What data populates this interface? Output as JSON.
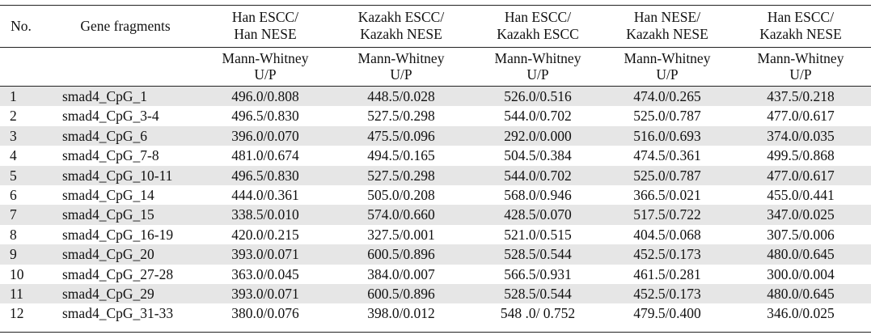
{
  "table": {
    "headers": {
      "no": "No.",
      "gene": "Gene fragments",
      "columns": [
        [
          "Han ESCC/",
          "Han NESE"
        ],
        [
          "Kazakh ESCC/",
          "Kazakh NESE"
        ],
        [
          "Han ESCC/",
          "Kazakh ESCC"
        ],
        [
          "Han NESE/",
          "Kazakh NESE"
        ],
        [
          "Han ESCC/",
          "Kazakh NESE"
        ]
      ],
      "subheader": [
        "Mann-Whitney",
        "U/P"
      ]
    },
    "rows": [
      {
        "no": "1",
        "gene": "smad4_CpG_1",
        "values": [
          "496.0/0.808",
          "448.5/0.028",
          "526.0/0.516",
          "474.0/0.265",
          "437.5/0.218"
        ]
      },
      {
        "no": "2",
        "gene": "smad4_CpG_3-4",
        "values": [
          "496.5/0.830",
          "527.5/0.298",
          "544.0/0.702",
          "525.0/0.787",
          "477.0/0.617"
        ]
      },
      {
        "no": "3",
        "gene": "smad4_CpG_6",
        "values": [
          "396.0/0.070",
          "475.5/0.096",
          "292.0/0.000",
          "516.0/0.693",
          "374.0/0.035"
        ]
      },
      {
        "no": "4",
        "gene": "smad4_CpG_7-8",
        "values": [
          "481.0/0.674",
          "494.5/0.165",
          "504.5/0.384",
          "474.5/0.361",
          "499.5/0.868"
        ]
      },
      {
        "no": "5",
        "gene": "smad4_CpG_10-11",
        "values": [
          "496.5/0.830",
          "527.5/0.298",
          "544.0/0.702",
          "525.0/0.787",
          "477.0/0.617"
        ]
      },
      {
        "no": "6",
        "gene": "smad4_CpG_14",
        "values": [
          "444.0/0.361",
          "505.0/0.208",
          "568.0/0.946",
          "366.5/0.021",
          "455.0/0.441"
        ]
      },
      {
        "no": "7",
        "gene": "smad4_CpG_15",
        "values": [
          "338.5/0.010",
          "574.0/0.660",
          "428.5/0.070",
          "517.5/0.722",
          "347.0/0.025"
        ]
      },
      {
        "no": "8",
        "gene": "smad4_CpG_16-19",
        "values": [
          "420.0/0.215",
          "327.5/0.001",
          "521.0/0.515",
          "404.5/0.068",
          "307.5/0.006"
        ]
      },
      {
        "no": "9",
        "gene": "smad4_CpG_20",
        "values": [
          "393.0/0.071",
          "600.5/0.896",
          "528.5/0.544",
          "452.5/0.173",
          "480.0/0.645"
        ]
      },
      {
        "no": "10",
        "gene": "smad4_CpG_27-28",
        "values": [
          "363.0/0.045",
          "384.0/0.007",
          "566.5/0.931",
          "461.5/0.281",
          "300.0/0.004"
        ]
      },
      {
        "no": "11",
        "gene": "smad4_CpG_29",
        "values": [
          "393.0/0.071",
          "600.5/0.896",
          "528.5/0.544",
          "452.5/0.173",
          "480.0/0.645"
        ]
      },
      {
        "no": "12",
        "gene": "smad4_CpG_31-33",
        "values": [
          "380.0/0.076",
          "398.0/0.012",
          "548 .0/ 0.752",
          "479.5/0.400",
          "346.0/0.025"
        ]
      }
    ]
  }
}
